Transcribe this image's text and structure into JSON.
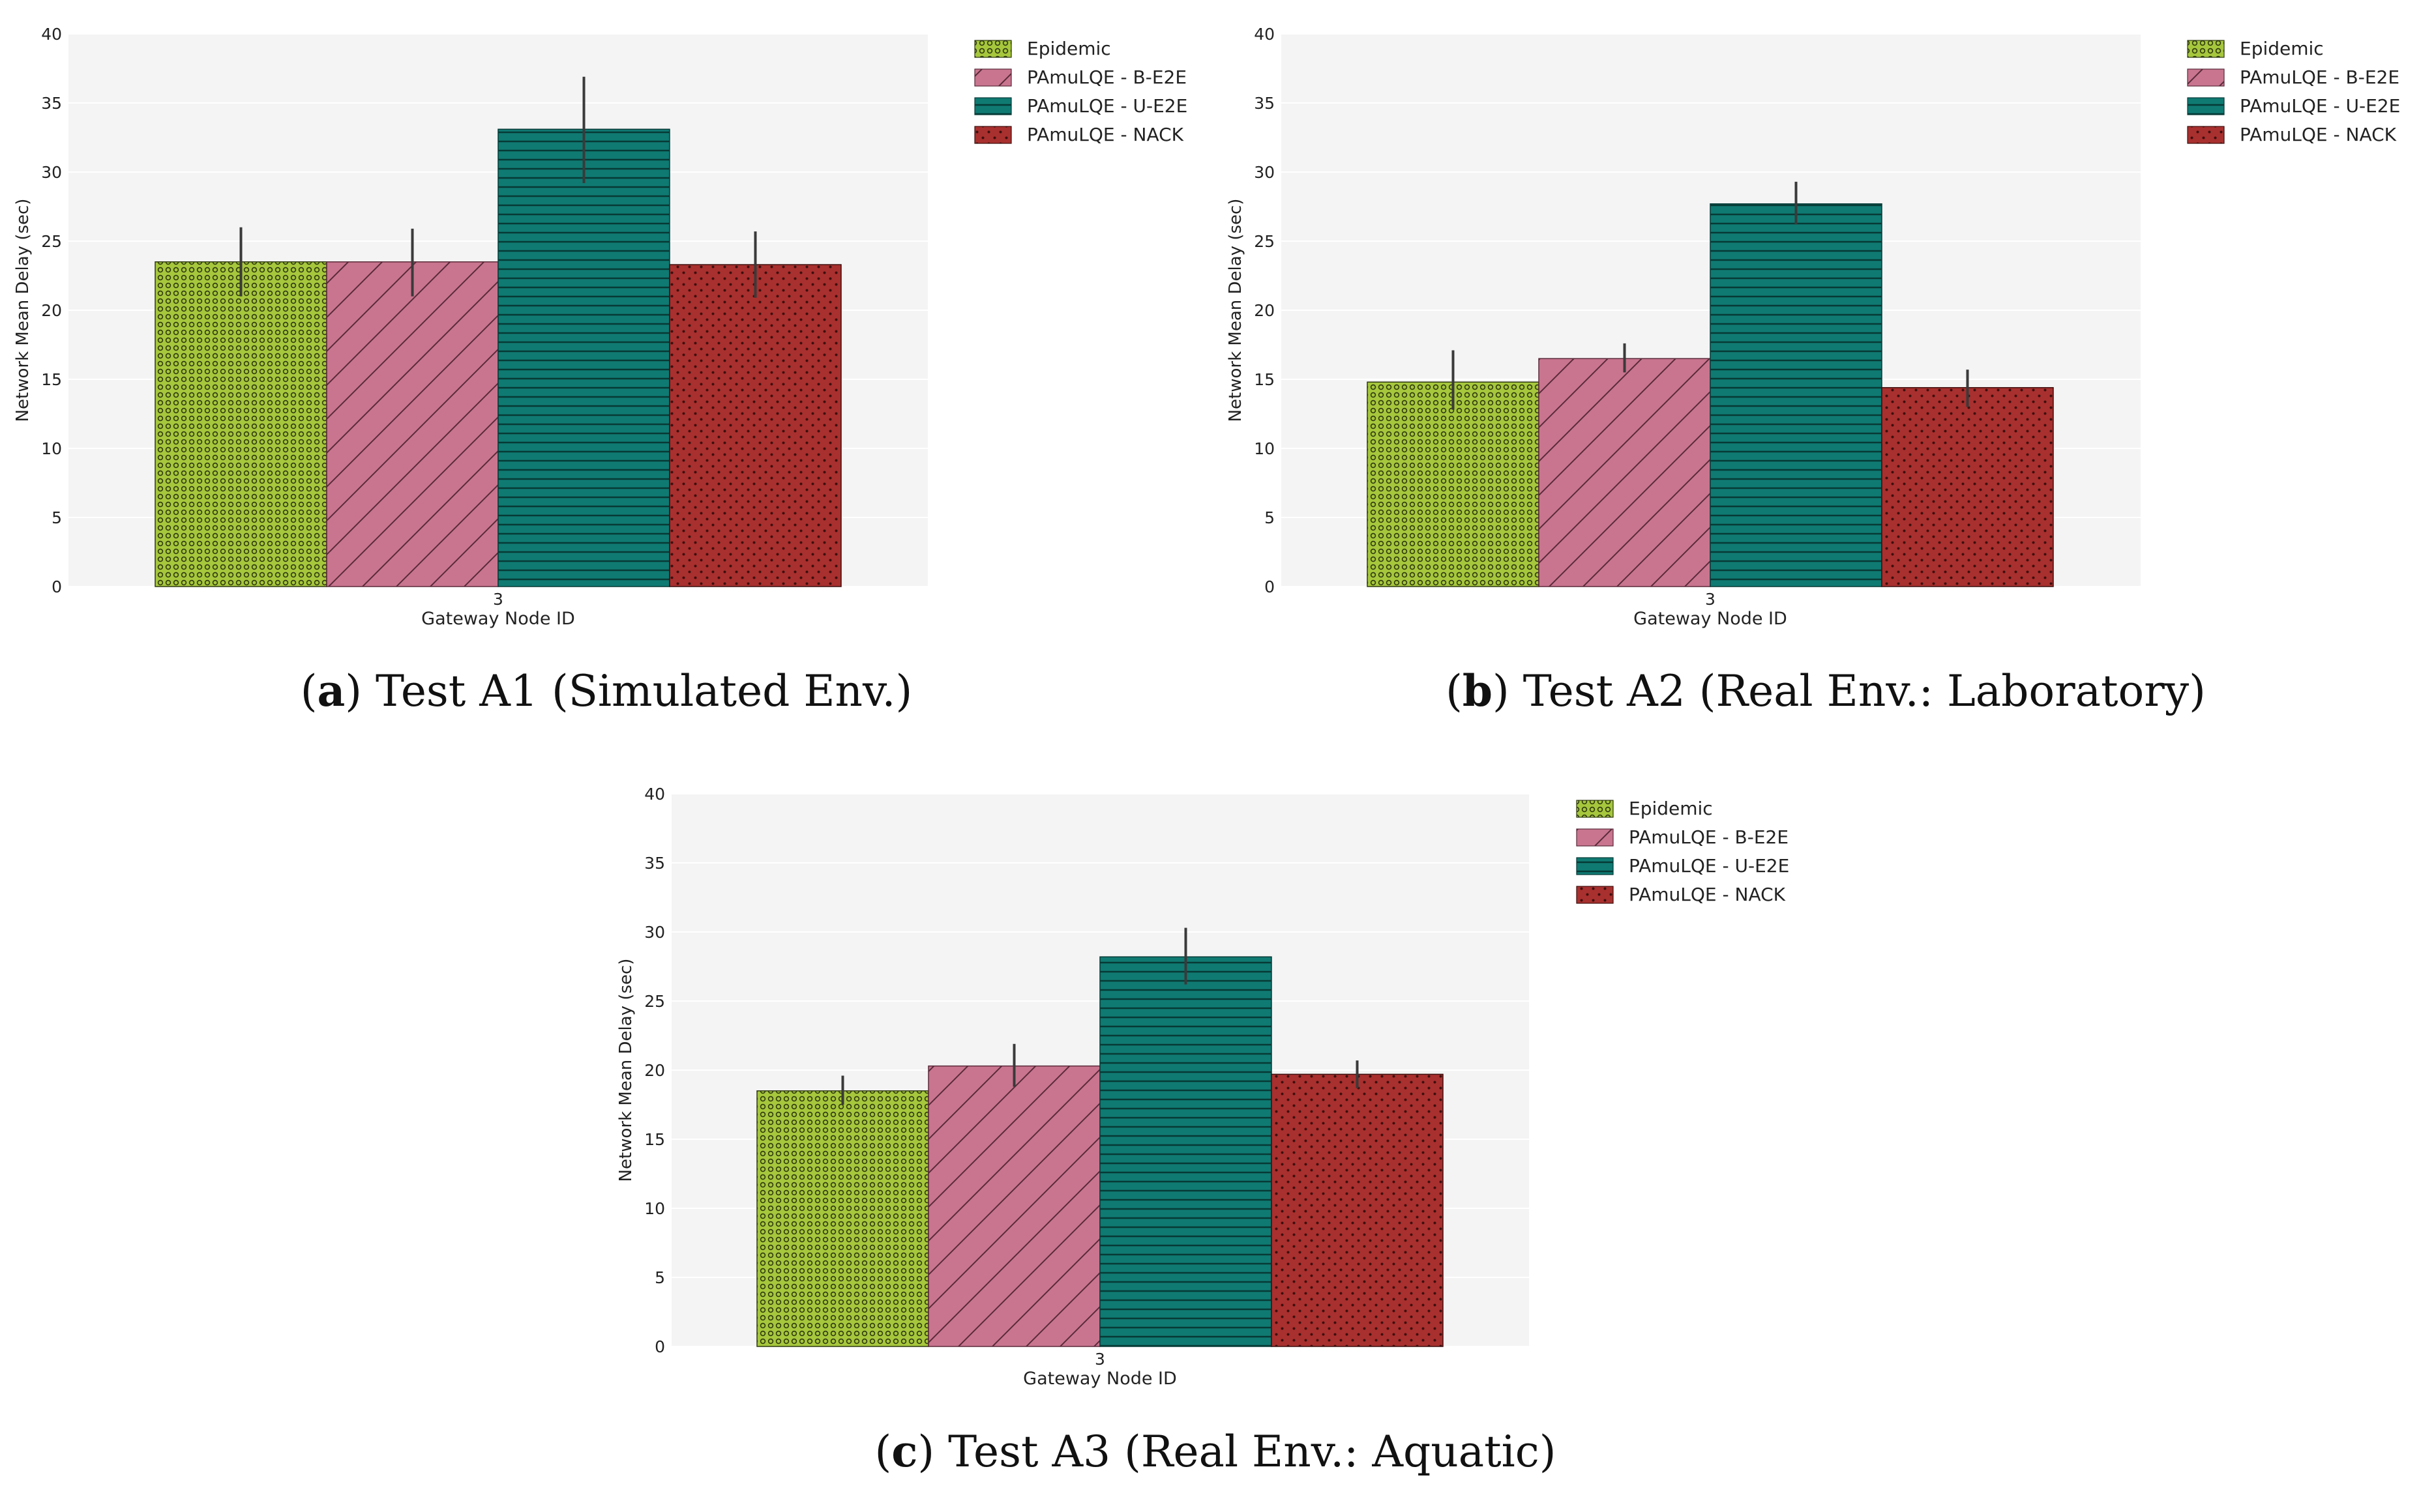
{
  "legend_colors": {
    "Epidemic": {
      "fill": "#a6c73c",
      "pattern": "#2f3a10"
    },
    "PAmuLQE - B-E2E": {
      "fill": "#c9758f",
      "pattern": "#5a2a3a"
    },
    "PAmuLQE - U-E2E": {
      "fill": "#0f7a72",
      "pattern": "#073a36"
    },
    "PAmuLQE - NACK": {
      "fill": "#a8302e",
      "pattern": "#3d0f0e"
    }
  },
  "chart_data": [
    {
      "id": "a",
      "type": "bar",
      "caption_letter": "a",
      "caption_open": "(",
      "caption_rest": ") Test A1 (Simulated Env.)",
      "xlabel": "Gateway Node ID",
      "ylabel": "Network Mean Delay (sec)",
      "ylim": [
        0,
        40
      ],
      "yticks": [
        "0",
        "5",
        "10",
        "15",
        "20",
        "25",
        "30",
        "35",
        "40"
      ],
      "categories": [
        "3"
      ],
      "grid": true,
      "legend_position": "outside-right",
      "series": [
        {
          "name": "Epidemic",
          "values": [
            23.5
          ],
          "err_low": [
            21.0
          ],
          "err_high": [
            26.0
          ]
        },
        {
          "name": "PAmuLQE - B-E2E",
          "values": [
            23.5
          ],
          "err_low": [
            21.0
          ],
          "err_high": [
            25.9
          ]
        },
        {
          "name": "PAmuLQE - U-E2E",
          "values": [
            33.1
          ],
          "err_low": [
            29.2
          ],
          "err_high": [
            36.9
          ]
        },
        {
          "name": "PAmuLQE - NACK",
          "values": [
            23.3
          ],
          "err_low": [
            20.9
          ],
          "err_high": [
            25.7
          ]
        }
      ]
    },
    {
      "id": "b",
      "type": "bar",
      "caption_letter": "b",
      "caption_open": "(",
      "caption_rest": ") Test A2 (Real Env.: Laboratory)",
      "xlabel": "Gateway Node ID",
      "ylabel": "Network Mean Delay (sec)",
      "ylim": [
        0,
        40
      ],
      "yticks": [
        "0",
        "5",
        "10",
        "15",
        "20",
        "25",
        "30",
        "35",
        "40"
      ],
      "categories": [
        "3"
      ],
      "grid": true,
      "legend_position": "outside-right",
      "series": [
        {
          "name": "Epidemic",
          "values": [
            14.8
          ],
          "err_low": [
            12.8
          ],
          "err_high": [
            17.1
          ]
        },
        {
          "name": "PAmuLQE - B-E2E",
          "values": [
            16.5
          ],
          "err_low": [
            15.5
          ],
          "err_high": [
            17.6
          ]
        },
        {
          "name": "PAmuLQE - U-E2E",
          "values": [
            27.7
          ],
          "err_low": [
            26.2
          ],
          "err_high": [
            29.3
          ]
        },
        {
          "name": "PAmuLQE - NACK",
          "values": [
            14.4
          ],
          "err_low": [
            13.0
          ],
          "err_high": [
            15.7
          ]
        }
      ]
    },
    {
      "id": "c",
      "type": "bar",
      "caption_letter": "c",
      "caption_open": "(",
      "caption_rest": ") Test A3 (Real Env.: Aquatic)",
      "xlabel": "Gateway Node ID",
      "ylabel": "Network Mean Delay (sec)",
      "ylim": [
        0,
        40
      ],
      "yticks": [
        "0",
        "5",
        "10",
        "15",
        "20",
        "25",
        "30",
        "35",
        "40"
      ],
      "categories": [
        "3"
      ],
      "grid": true,
      "legend_position": "outside-right",
      "series": [
        {
          "name": "Epidemic",
          "values": [
            18.5
          ],
          "err_low": [
            17.5
          ],
          "err_high": [
            19.6
          ]
        },
        {
          "name": "PAmuLQE - B-E2E",
          "values": [
            20.3
          ],
          "err_low": [
            18.8
          ],
          "err_high": [
            21.9
          ]
        },
        {
          "name": "PAmuLQE - U-E2E",
          "values": [
            28.2
          ],
          "err_low": [
            26.2
          ],
          "err_high": [
            30.3
          ]
        },
        {
          "name": "PAmuLQE - NACK",
          "values": [
            19.7
          ],
          "err_low": [
            18.7
          ],
          "err_high": [
            20.7
          ]
        }
      ]
    }
  ]
}
